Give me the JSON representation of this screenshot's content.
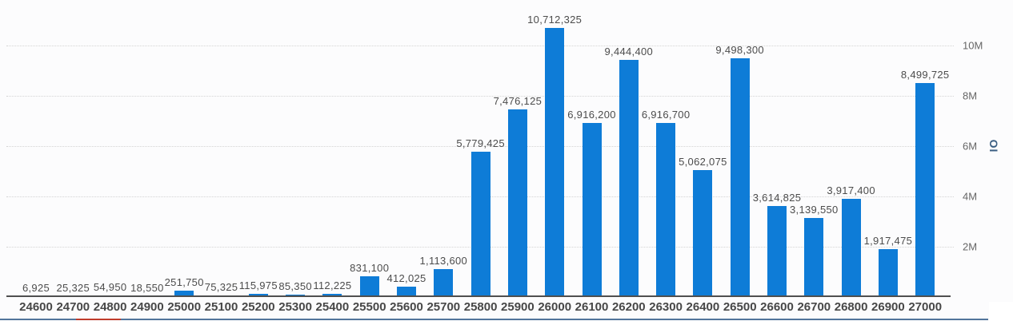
{
  "chart_data": {
    "type": "bar",
    "title": "",
    "xlabel": "",
    "ylabel": "OI",
    "categories": [
      "24600",
      "24700",
      "24800",
      "24900",
      "25000",
      "25100",
      "25200",
      "25300",
      "25400",
      "25500",
      "25600",
      "25700",
      "25800",
      "25900",
      "26000",
      "26100",
      "26200",
      "26300",
      "26400",
      "26500",
      "26600",
      "26700",
      "26800",
      "26900",
      "27000"
    ],
    "values": [
      6925,
      25325,
      54950,
      18550,
      251750,
      75325,
      115975,
      85350,
      112225,
      831100,
      412025,
      1113600,
      5779425,
      7476125,
      10712325,
      6916200,
      9444400,
      6916700,
      5062075,
      9498300,
      3614825,
      3139550,
      3917400,
      1917475,
      8499725
    ],
    "value_labels": [
      "6,925",
      "25,325",
      "54,950",
      "18,550",
      "251,750",
      "75,325",
      "115,975",
      "85,350",
      "112,225",
      "831,100",
      "412,025",
      "1,113,600",
      "5,779,425",
      "7,476,125",
      "10,712,325",
      "6,916,200",
      "9,444,400",
      "6,916,700",
      "5,062,075",
      "9,498,300",
      "3,614,825",
      "3,139,550",
      "3,917,400",
      "1,917,475",
      "8,499,725"
    ],
    "y_tick_labels": [
      "2M",
      "4M",
      "6M",
      "8M",
      "10M"
    ],
    "y_tick_values": [
      2000000,
      4000000,
      6000000,
      8000000,
      10000000
    ],
    "ylim": [
      0,
      10000000
    ],
    "y_axis_side": "right",
    "grid": "horizontal-dotted",
    "legend_position": "none"
  },
  "colors": {
    "bar": "#0e7cd7",
    "grid": "#d4d4d4",
    "axis_line": "#4f4f4f",
    "value_label": "#4c4c4c",
    "x_label": "#474747",
    "y_label": "#666666",
    "y_title": "#3a5e82",
    "bottom_line": "#51749b",
    "bottom_marker": "#bf3a2b",
    "background": "#fcfcfd"
  }
}
